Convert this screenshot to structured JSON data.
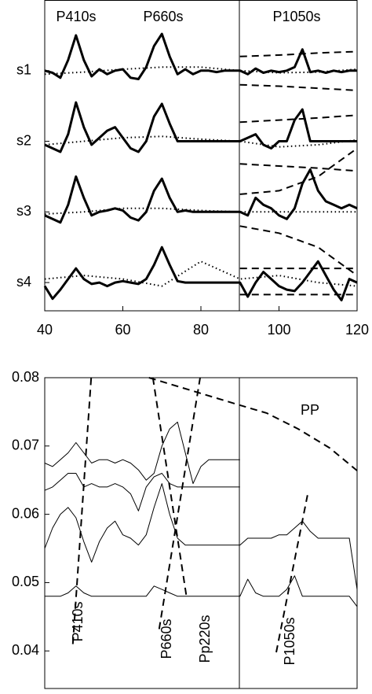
{
  "chart_data": [
    {
      "type": "line",
      "annotations": [
        "P410s",
        "P660s",
        "P1050s"
      ],
      "x": [
        40,
        42,
        44,
        46,
        48,
        50,
        52,
        54,
        56,
        58,
        60,
        62,
        64,
        66,
        68,
        70,
        72,
        74,
        76,
        78,
        80,
        82,
        84,
        86,
        88,
        90,
        92,
        94,
        96,
        98,
        100,
        102,
        104,
        106,
        108,
        110,
        112,
        114,
        116,
        118,
        120
      ],
      "xlim": [
        40,
        120
      ],
      "xticks": [
        40,
        60,
        80,
        100,
        120
      ],
      "ylim": [
        0.6,
        5
      ],
      "yticks": [
        {
          "value": 4,
          "label": "s1"
        },
        {
          "value": 3,
          "label": "s2"
        },
        {
          "value": 2,
          "label": "s3"
        },
        {
          "value": 1,
          "label": "s4"
        }
      ],
      "series": [
        {
          "color": "#000000",
          "style": "solid",
          "values": [
            4.0,
            3.97,
            3.9,
            4.15,
            4.5,
            4.15,
            3.92,
            4.02,
            3.95,
            4.0,
            4.02,
            3.9,
            3.88,
            4.05,
            4.35,
            4.52,
            4.2,
            3.95,
            4.02,
            3.95,
            4.0,
            4.0,
            3.98,
            4.0,
            4.0,
            4.0,
            3.95,
            4.03,
            3.97,
            4.0,
            3.98,
            4.0,
            4.05,
            4.3,
            3.98,
            4.0,
            3.97,
            4.0,
            3.98,
            4.0,
            4.0
          ]
        },
        {
          "color": "#000000",
          "style": "solid",
          "values": [
            2.95,
            2.9,
            2.85,
            3.1,
            3.55,
            3.2,
            2.95,
            3.05,
            3.15,
            3.2,
            3.05,
            2.9,
            2.85,
            3.0,
            3.35,
            3.53,
            3.25,
            3.0,
            3.0,
            3.0,
            3.0,
            3.0,
            3.0,
            3.0,
            3.0,
            3.0,
            3.05,
            3.1,
            2.95,
            2.9,
            3.0,
            3.0,
            3.3,
            3.45,
            3.0,
            3.0,
            3.0,
            3.0,
            3.0,
            3.0,
            3.0
          ]
        },
        {
          "color": "#000000",
          "style": "solid",
          "values": [
            1.95,
            1.9,
            1.85,
            2.1,
            2.5,
            2.2,
            1.95,
            2.0,
            2.02,
            2.05,
            2.02,
            1.92,
            1.88,
            2.0,
            2.3,
            2.47,
            2.2,
            2.0,
            2.02,
            2.0,
            2.0,
            2.0,
            2.0,
            2.0,
            2.0,
            2.0,
            1.95,
            2.2,
            2.1,
            2.05,
            1.95,
            1.9,
            2.05,
            2.4,
            2.6,
            2.3,
            2.15,
            2.1,
            2.05,
            2.1,
            2.05
          ]
        },
        {
          "color": "#000000",
          "style": "solid",
          "values": [
            0.95,
            0.77,
            0.9,
            1.05,
            1.2,
            1.05,
            0.98,
            1.0,
            0.95,
            1.0,
            1.02,
            1.0,
            0.98,
            1.05,
            1.25,
            1.5,
            1.25,
            1.02,
            1.0,
            1.0,
            1.0,
            1.0,
            1.0,
            1.0,
            1.0,
            1.0,
            0.8,
            1.0,
            1.15,
            1.05,
            0.95,
            0.9,
            0.88,
            1.0,
            1.15,
            1.3,
            1.1,
            0.9,
            0.75,
            1.05,
            1.0
          ]
        },
        {
          "color": "#000000",
          "style": "dotted",
          "x": [
            40,
            50,
            60,
            70,
            80,
            90,
            100,
            110,
            120
          ],
          "values": [
            3.95,
            3.98,
            4.02,
            4.05,
            4.05,
            4.0,
            3.97,
            3.98,
            4.02
          ]
        },
        {
          "color": "#000000",
          "style": "dotted",
          "x": [
            40,
            50,
            60,
            70,
            80,
            90,
            100,
            110,
            120
          ],
          "values": [
            2.95,
            3.0,
            3.05,
            3.07,
            3.03,
            3.0,
            2.92,
            2.95,
            3.02
          ]
        },
        {
          "color": "#000000",
          "style": "dotted",
          "x": [
            40,
            50,
            60,
            70,
            80,
            90,
            100,
            110,
            120
          ],
          "values": [
            1.97,
            2.0,
            2.05,
            2.05,
            2.02,
            2.0,
            2.0,
            2.0,
            2.0
          ]
        },
        {
          "color": "#000000",
          "style": "dotted",
          "x": [
            40,
            50,
            60,
            70,
            80,
            90,
            100,
            110,
            120
          ],
          "values": [
            1.05,
            1.1,
            1.05,
            0.95,
            1.3,
            1.05,
            1.1,
            1.0,
            0.95
          ]
        },
        {
          "color": "#000000",
          "style": "dashed",
          "x": [
            90,
            100,
            110,
            120
          ],
          "values": [
            4.2,
            4.22,
            4.25,
            4.27
          ]
        },
        {
          "color": "#000000",
          "style": "dashed",
          "x": [
            90,
            100,
            110,
            120
          ],
          "values": [
            3.8,
            3.78,
            3.75,
            3.72
          ]
        },
        {
          "color": "#000000",
          "style": "dashed",
          "x": [
            90,
            100,
            110,
            120
          ],
          "values": [
            3.27,
            3.3,
            3.33,
            3.37
          ]
        },
        {
          "color": "#000000",
          "style": "dashed",
          "x": [
            90,
            100,
            110,
            120
          ],
          "values": [
            2.68,
            2.65,
            2.62,
            2.58
          ]
        },
        {
          "color": "#000000",
          "style": "dashed",
          "x": [
            90,
            100,
            110,
            120
          ],
          "values": [
            2.25,
            2.3,
            2.5,
            2.9
          ]
        },
        {
          "color": "#000000",
          "style": "dashed",
          "x": [
            90,
            100,
            110,
            120
          ],
          "values": [
            1.8,
            1.7,
            1.5,
            1.1
          ]
        },
        {
          "color": "#000000",
          "style": "dashed",
          "x": [
            90,
            100,
            110,
            120
          ],
          "values": [
            1.2,
            1.2,
            1.2,
            1.2
          ]
        },
        {
          "color": "#000000",
          "style": "dashed",
          "x": [
            90,
            100,
            110,
            120
          ],
          "values": [
            0.83,
            0.83,
            0.83,
            0.83
          ]
        }
      ]
    },
    {
      "type": "line",
      "x": [
        40,
        42,
        44,
        46,
        48,
        50,
        52,
        54,
        56,
        58,
        60,
        62,
        64,
        66,
        68,
        70,
        72,
        74,
        76,
        78,
        80,
        82,
        84,
        86,
        88,
        90,
        92,
        94,
        96,
        98,
        100,
        102,
        104,
        106,
        108,
        110,
        112,
        114,
        116,
        118,
        120
      ],
      "xlim": [
        40,
        120
      ],
      "ylim": [
        0.0345,
        0.08
      ],
      "yticks": [
        0.04,
        0.05,
        0.06,
        0.07,
        0.08
      ],
      "series": [
        {
          "color": "#000000",
          "style": "thin",
          "values": [
            0.0675,
            0.067,
            0.068,
            0.069,
            0.0705,
            0.069,
            0.0675,
            0.068,
            0.068,
            0.0675,
            0.068,
            0.0675,
            0.0665,
            0.065,
            0.066,
            0.07,
            0.0725,
            0.0735,
            0.069,
            0.0645,
            0.067,
            0.068,
            0.068,
            0.068,
            0.068,
            0.068,
            null,
            null,
            null,
            null,
            null,
            null,
            null,
            null,
            null,
            null,
            null,
            null,
            null,
            null,
            null
          ]
        },
        {
          "color": "#000000",
          "style": "thin",
          "values": [
            0.0635,
            0.064,
            0.065,
            0.066,
            0.066,
            0.064,
            0.0645,
            0.064,
            0.064,
            0.0645,
            0.064,
            0.063,
            0.0605,
            0.064,
            0.0655,
            0.066,
            0.0645,
            0.064,
            0.064,
            0.064,
            0.064,
            0.064,
            0.064,
            0.064,
            0.064,
            0.064,
            null,
            null,
            null,
            null,
            null,
            null,
            null,
            null,
            null,
            null,
            null,
            null,
            null,
            null,
            null
          ]
        },
        {
          "color": "#000000",
          "style": "thin",
          "values": [
            0.055,
            0.058,
            0.06,
            0.061,
            0.0595,
            0.056,
            0.053,
            0.056,
            0.058,
            0.059,
            0.057,
            0.0565,
            0.0555,
            0.057,
            0.061,
            0.0645,
            0.06,
            0.0565,
            0.0555,
            0.0555,
            0.0555,
            0.0555,
            0.0555,
            0.0555,
            0.0555,
            0.0555,
            0.0565,
            0.0565,
            0.0565,
            0.0565,
            0.057,
            0.057,
            0.058,
            0.059,
            0.0575,
            0.0565,
            0.0565,
            0.0565,
            0.0565,
            0.0565,
            0.049
          ]
        },
        {
          "color": "#000000",
          "style": "thin",
          "values": [
            0.048,
            0.048,
            0.048,
            0.0485,
            0.0495,
            0.0485,
            0.048,
            0.048,
            0.048,
            0.048,
            0.048,
            0.048,
            0.048,
            0.048,
            0.0495,
            0.049,
            0.0485,
            0.048,
            0.048,
            0.048,
            0.048,
            0.048,
            0.048,
            0.048,
            0.048,
            0.048,
            0.0505,
            0.0485,
            0.048,
            0.048,
            0.048,
            0.049,
            0.051,
            0.048,
            0.048,
            0.048,
            0.048,
            0.048,
            0.048,
            0.048,
            0.0465
          ]
        },
        {
          "name": "P410s",
          "color": "#000000",
          "style": "dashed",
          "x": [
            47.2,
            51.9
          ],
          "values": [
            0.041,
            0.08
          ]
        },
        {
          "name": "P660s",
          "color": "#000000",
          "style": "dashed",
          "x": [
            69.3,
            79.8
          ],
          "values": [
            0.0432,
            0.08
          ]
        },
        {
          "name": "Pp220s",
          "color": "#000000",
          "style": "dashed",
          "x": [
            67.7,
            76.4
          ],
          "values": [
            0.08,
            0.0476
          ]
        },
        {
          "name": "P1050s",
          "color": "#000000",
          "style": "dashed",
          "x": [
            99.3,
            107.3
          ],
          "values": [
            0.0398,
            0.0628
          ]
        },
        {
          "name": "PP",
          "color": "#000000",
          "style": "dashed",
          "x": [
            66.7,
            89.8,
            96.9,
            104.9,
            113,
            120
          ],
          "values": [
            0.08,
            0.076,
            0.0748,
            0.0725,
            0.0697,
            0.0664
          ]
        }
      ]
    }
  ]
}
